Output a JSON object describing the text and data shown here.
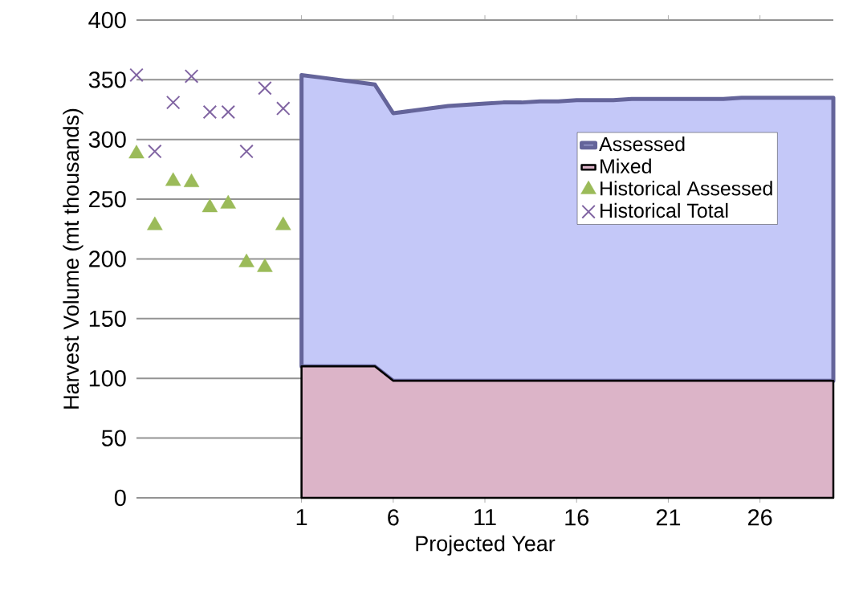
{
  "chart_data": {
    "type": "area",
    "stacked": true,
    "xlabel": "Projected Year",
    "ylabel": "Harvest Volume (mt thousands)",
    "xlim": [
      -8,
      30
    ],
    "xticks": [
      1,
      6,
      11,
      16,
      21,
      26
    ],
    "ylim": [
      0,
      400
    ],
    "yticks": [
      0,
      50,
      100,
      150,
      200,
      250,
      300,
      350,
      400
    ],
    "grid": "y",
    "legend": "right",
    "series": [
      {
        "name": "Mixed",
        "color": "#dcb4c8",
        "x": [
          1,
          2,
          3,
          4,
          5,
          6,
          7,
          8,
          9,
          10,
          11,
          12,
          13,
          14,
          15,
          16,
          17,
          18,
          19,
          20,
          21,
          22,
          23,
          24,
          25,
          26,
          27,
          28,
          29,
          30
        ],
        "values": [
          110,
          110,
          110,
          110,
          110,
          98,
          98,
          98,
          98,
          98,
          98,
          98,
          98,
          98,
          98,
          98,
          98,
          98,
          98,
          98,
          98,
          98,
          98,
          98,
          98,
          98,
          98,
          98,
          98,
          98
        ]
      },
      {
        "name": "Assessed",
        "color": "#c4c8f8",
        "x": [
          1,
          2,
          3,
          4,
          5,
          6,
          7,
          8,
          9,
          10,
          11,
          12,
          13,
          14,
          15,
          16,
          17,
          18,
          19,
          20,
          21,
          22,
          23,
          24,
          25,
          26,
          27,
          28,
          29,
          30
        ],
        "values": [
          244,
          242,
          240,
          238,
          236,
          224,
          226,
          228,
          230,
          231,
          232,
          233,
          233,
          234,
          234,
          235,
          235,
          235,
          236,
          236,
          236,
          236,
          236,
          236,
          237,
          237,
          237,
          237,
          237,
          237
        ]
      },
      {
        "name": "Historical Assessed",
        "type": "scatter",
        "marker": "triangle",
        "color": "#9bbb59",
        "x": [
          -8,
          -7,
          -6,
          -5,
          -4,
          -3,
          -2,
          -1,
          0
        ],
        "values": [
          288,
          228,
          265,
          264,
          243,
          246,
          197,
          193,
          228
        ]
      },
      {
        "name": "Historical Total",
        "type": "scatter",
        "marker": "cross",
        "color": "#8064a2",
        "x": [
          -8,
          -7,
          -6,
          -5,
          -4,
          -3,
          -2,
          -1,
          0
        ],
        "values": [
          354,
          290,
          331,
          353,
          323,
          323,
          290,
          343,
          326
        ]
      }
    ]
  }
}
